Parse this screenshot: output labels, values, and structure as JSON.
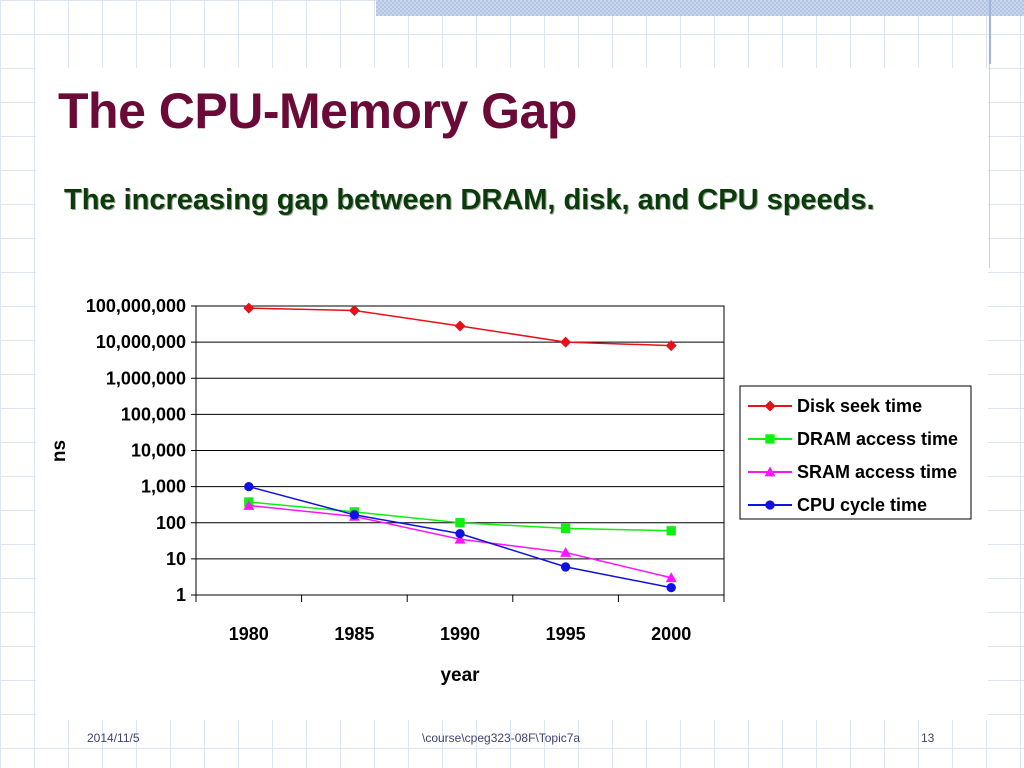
{
  "slide": {
    "title": "The CPU-Memory Gap",
    "subtitle": "The increasing gap between DRAM, disk, and CPU speeds.",
    "footer_date": "2014/11/5",
    "footer_path": "\\course\\cpeg323-08F\\Topic7a",
    "page_number": "13",
    "title_color": "#6b0a36",
    "subtitle_color": "#0b3a0b"
  },
  "chart_data": {
    "type": "line",
    "title": "",
    "xlabel": "year",
    "ylabel": "ns",
    "x": [
      "1980",
      "1985",
      "1990",
      "1995",
      "2000"
    ],
    "yscale": "log",
    "ylim": [
      1,
      100000000
    ],
    "yticks": [
      "1",
      "10",
      "100",
      "1,000",
      "10,000",
      "100,000",
      "1,000,000",
      "10,000,000",
      "100,000,000"
    ],
    "grid": "horizontal",
    "legend_position": "right",
    "series": [
      {
        "name": "Disk seek time",
        "values": [
          87000000,
          75000000,
          28000000,
          10000000,
          8000000
        ],
        "color": "#e8101a",
        "marker": "diamond"
      },
      {
        "name": "DRAM access time",
        "values": [
          375,
          200,
          100,
          70,
          60
        ],
        "color": "#11ee11",
        "marker": "square"
      },
      {
        "name": "SRAM access time",
        "values": [
          300,
          150,
          35,
          15,
          3
        ],
        "color": "#ff14ff",
        "marker": "triangle"
      },
      {
        "name": "CPU cycle time",
        "values": [
          1000,
          166,
          50,
          6,
          1.6
        ],
        "color": "#1010e0",
        "marker": "circle"
      }
    ]
  }
}
